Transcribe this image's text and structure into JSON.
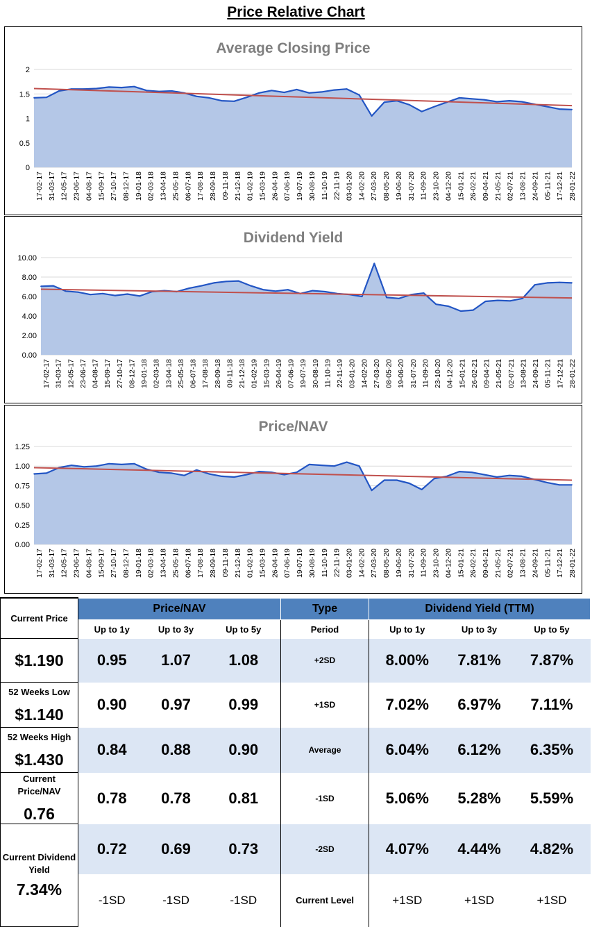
{
  "page_title": "Price Relative Chart",
  "chart_data": [
    {
      "type": "area",
      "title": "Average Closing Price",
      "ylim": [
        0,
        2
      ],
      "y_ticks": [
        "0",
        "0.5",
        "1",
        "1.5",
        "2"
      ],
      "x_tick_labels": [
        "17-02-17",
        "31-03-17",
        "12-05-17",
        "23-06-17",
        "04-08-17",
        "15-09-17",
        "27-10-17",
        "08-12-17",
        "19-01-18",
        "02-03-18",
        "13-04-18",
        "25-05-18",
        "06-07-18",
        "17-08-18",
        "28-09-18",
        "09-11-18",
        "21-12-18",
        "01-02-19",
        "15-03-19",
        "26-04-19",
        "07-06-19",
        "19-07-19",
        "30-08-19",
        "11-10-19",
        "22-11-19",
        "03-01-20",
        "14-02-20",
        "27-03-20",
        "08-05-20",
        "19-06-20",
        "31-07-20",
        "11-09-20",
        "23-10-20",
        "04-12-20",
        "15-01-21",
        "26-02-21",
        "09-04-21",
        "21-05-21",
        "02-07-21",
        "13-08-21",
        "24-09-21",
        "05-11-21",
        "17-12-21",
        "28-01-22"
      ],
      "series": [
        {
          "name": "Average Closing Price",
          "values": [
            1.42,
            1.43,
            1.56,
            1.6,
            1.6,
            1.61,
            1.64,
            1.63,
            1.65,
            1.57,
            1.55,
            1.56,
            1.52,
            1.45,
            1.42,
            1.36,
            1.35,
            1.43,
            1.52,
            1.57,
            1.53,
            1.59,
            1.52,
            1.54,
            1.58,
            1.6,
            1.48,
            1.05,
            1.33,
            1.36,
            1.28,
            1.14,
            1.24,
            1.33,
            1.42,
            1.4,
            1.38,
            1.34,
            1.36,
            1.34,
            1.29,
            1.24,
            1.19,
            1.18
          ]
        }
      ],
      "trend": [
        1.61,
        1.26
      ],
      "grid": true
    },
    {
      "type": "area",
      "title": "Dividend Yield",
      "ylim": [
        0,
        10
      ],
      "y_ticks": [
        "0.00",
        "2.00",
        "4.00",
        "6.00",
        "8.00",
        "10.00"
      ],
      "x_tick_labels": [
        "17-02-17",
        "31-03-17",
        "12-05-17",
        "23-06-17",
        "04-08-17",
        "15-09-17",
        "27-10-17",
        "08-12-17",
        "19-01-18",
        "02-03-18",
        "13-04-18",
        "25-05-18",
        "06-07-18",
        "17-08-18",
        "28-09-18",
        "09-11-18",
        "21-12-18",
        "01-02-19",
        "15-03-19",
        "26-04-19",
        "07-06-19",
        "19-07-19",
        "30-08-19",
        "11-10-19",
        "22-11-19",
        "03-01-20",
        "14-02-20",
        "27-03-20",
        "08-05-20",
        "19-06-20",
        "31-07-20",
        "11-09-20",
        "23-10-20",
        "04-12-20",
        "15-01-21",
        "26-02-21",
        "09-04-21",
        "21-05-21",
        "02-07-21",
        "13-08-21",
        "24-09-21",
        "05-11-21",
        "17-12-21",
        "28-01-22"
      ],
      "series": [
        {
          "name": "Dividend Yield",
          "values": [
            7.05,
            7.1,
            6.55,
            6.45,
            6.2,
            6.3,
            6.1,
            6.25,
            6.05,
            6.5,
            6.6,
            6.5,
            6.85,
            7.1,
            7.4,
            7.55,
            7.6,
            7.1,
            6.7,
            6.55,
            6.7,
            6.3,
            6.6,
            6.5,
            6.3,
            6.2,
            6.0,
            9.4,
            5.9,
            5.8,
            6.2,
            6.35,
            5.2,
            5.0,
            4.5,
            4.6,
            5.5,
            5.6,
            5.55,
            5.8,
            7.2,
            7.4,
            7.45,
            7.4
          ]
        }
      ],
      "trend": [
        6.75,
        5.85
      ],
      "grid": true
    },
    {
      "type": "area",
      "title": "Price/NAV",
      "ylim": [
        0,
        1.25
      ],
      "y_ticks": [
        "0.00",
        "0.25",
        "0.50",
        "0.75",
        "1.00",
        "1.25"
      ],
      "x_tick_labels": [
        "17-02-17",
        "31-03-17",
        "12-05-17",
        "23-06-17",
        "04-08-17",
        "15-09-17",
        "27-10-17",
        "08-12-17",
        "19-01-18",
        "02-03-18",
        "13-04-18",
        "25-05-18",
        "06-07-18",
        "17-08-18",
        "28-09-18",
        "09-11-18",
        "21-12-18",
        "01-02-19",
        "15-03-19",
        "26-04-19",
        "07-06-19",
        "19-07-19",
        "30-08-19",
        "11-10-19",
        "22-11-19",
        "03-01-20",
        "14-02-20",
        "27-03-20",
        "08-05-20",
        "19-06-20",
        "31-07-20",
        "11-09-20",
        "23-10-20",
        "04-12-20",
        "15-01-21",
        "26-02-21",
        "09-04-21",
        "21-05-21",
        "02-07-21",
        "13-08-21",
        "24-09-21",
        "05-11-21",
        "17-12-21",
        "28-01-22"
      ],
      "series": [
        {
          "name": "Price/NAV",
          "values": [
            0.9,
            0.91,
            0.98,
            1.01,
            0.99,
            1.0,
            1.03,
            1.02,
            1.03,
            0.96,
            0.92,
            0.91,
            0.88,
            0.95,
            0.9,
            0.87,
            0.86,
            0.89,
            0.93,
            0.92,
            0.89,
            0.92,
            1.02,
            1.01,
            1.0,
            1.05,
            1.0,
            0.69,
            0.82,
            0.82,
            0.78,
            0.7,
            0.84,
            0.87,
            0.93,
            0.92,
            0.89,
            0.86,
            0.88,
            0.87,
            0.83,
            0.79,
            0.76,
            0.76
          ]
        }
      ],
      "trend": [
        0.98,
        0.82
      ],
      "grid": true
    }
  ],
  "left_panel": {
    "current_price_label": "Current Price",
    "current_price": "$1.190",
    "low_label": "52 Weeks Low",
    "low_value": "$1.140",
    "high_label": "52 Weeks High",
    "high_value": "$1.430",
    "pnav_label": "Current Price/NAV",
    "pnav_value": "0.76",
    "yield_label": "Current Dividend Yield",
    "yield_value": "7.34%"
  },
  "table": {
    "headers": {
      "price_nav": "Price/NAV",
      "type": "Type",
      "dividend": "Dividend Yield (TTM)"
    },
    "subheaders": {
      "p1": "Up to 1y",
      "p3": "Up to 3y",
      "p5": "Up to 5y",
      "period": "Period",
      "d1": "Up to 1y",
      "d3": "Up to 3y",
      "d5": "Up to 5y"
    },
    "rows": [
      {
        "p1": "0.95",
        "p3": "1.07",
        "p5": "1.08",
        "type": "+2SD",
        "d1": "8.00%",
        "d3": "7.81%",
        "d5": "7.87%"
      },
      {
        "p1": "0.90",
        "p3": "0.97",
        "p5": "0.99",
        "type": "+1SD",
        "d1": "7.02%",
        "d3": "6.97%",
        "d5": "7.11%"
      },
      {
        "p1": "0.84",
        "p3": "0.88",
        "p5": "0.90",
        "type": "Average",
        "d1": "6.04%",
        "d3": "6.12%",
        "d5": "6.35%"
      },
      {
        "p1": "0.78",
        "p3": "0.78",
        "p5": "0.81",
        "type": "-1SD",
        "d1": "5.06%",
        "d3": "5.28%",
        "d5": "5.59%"
      },
      {
        "p1": "0.72",
        "p3": "0.69",
        "p5": "0.73",
        "type": "-2SD",
        "d1": "4.07%",
        "d3": "4.44%",
        "d5": "4.82%"
      },
      {
        "p1": "-1SD",
        "p3": "-1SD",
        "p5": "-1SD",
        "type": "Current Level",
        "d1": "+1SD",
        "d3": "+1SD",
        "d5": "+1SD"
      }
    ]
  },
  "colors": {
    "area_fill": "#b4c7e7",
    "line": "#2255c4",
    "trend": "#c0504d",
    "header": "#4f81bd",
    "stripe": "#dce6f4"
  }
}
